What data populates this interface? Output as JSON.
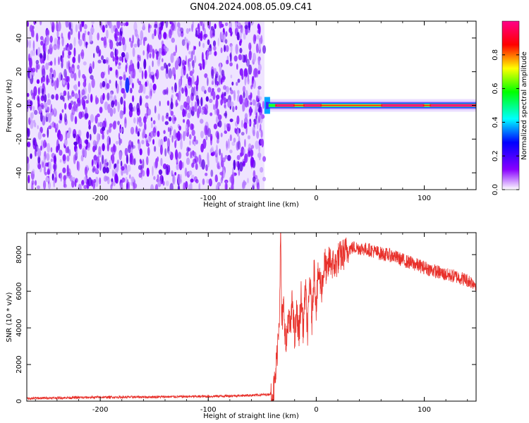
{
  "title": "GN04.2024.008.05.09.C41",
  "chart_data": [
    {
      "type": "heatmap",
      "xlabel": "Height of straight line (km)",
      "ylabel": "Frequency (Hz)",
      "xlim": [
        -268,
        148
      ],
      "ylim": [
        -50,
        50
      ],
      "xticks": [
        -200,
        -100,
        0,
        100
      ],
      "yticks": [
        -40,
        -20,
        0,
        20,
        40
      ],
      "noise_region_x": [
        -268,
        -48
      ],
      "signal_band": {
        "x": [
          -48,
          148
        ],
        "frequency_hz": 0,
        "initial_spread_hz": [
          -5,
          5
        ],
        "peak_segments_x": [
          [
            -38,
            -20
          ],
          [
            -12,
            5
          ],
          [
            60,
            100
          ],
          [
            105,
            148
          ]
        ]
      },
      "interference_spot": {
        "x": -175,
        "frequency_hz": 12
      },
      "colorbar": {
        "label": "Normalized spectral amplitude",
        "range": [
          0.0,
          1.0
        ],
        "ticks": [
          0.0,
          0.2,
          0.4,
          0.6,
          0.8
        ],
        "tick_labels": [
          "0.0",
          "0.2",
          "0.4",
          "0.6",
          "0.8"
        ],
        "colormap": [
          "#ffffff",
          "#8800ff",
          "#0000ff",
          "#00ffff",
          "#00ff00",
          "#ffff00",
          "#ff0000",
          "#ff0088"
        ]
      }
    },
    {
      "type": "line",
      "xlabel": "Height of straight line (km)",
      "ylabel": "SNR (10 * v/v)",
      "xlim": [
        -268,
        148
      ],
      "ylim": [
        0,
        9200
      ],
      "xticks": [
        -200,
        -100,
        0,
        100
      ],
      "yticks": [
        0,
        2000,
        4000,
        6000,
        8000
      ],
      "color": "#e8302a",
      "series": [
        {
          "x": [
            -268,
            -240,
            -200,
            -150,
            -100,
            -60,
            -45,
            -40,
            -38,
            -36,
            -34,
            -33,
            -32,
            -30,
            -28,
            -26,
            -24,
            -22,
            -20,
            -18,
            -16,
            -14,
            -12,
            -10,
            -8,
            -6,
            -4,
            -2,
            0,
            2,
            5,
            8,
            10,
            12,
            15,
            18,
            20,
            25,
            30,
            35,
            40,
            50,
            60,
            70,
            80,
            90,
            100,
            110,
            120,
            130,
            140,
            148
          ],
          "y": [
            150,
            180,
            210,
            230,
            260,
            320,
            360,
            430,
            1100,
            2900,
            5000,
            9200,
            4300,
            5200,
            2800,
            4600,
            3800,
            5600,
            3300,
            4900,
            3500,
            5800,
            3900,
            6200,
            3700,
            6800,
            4400,
            7300,
            5200,
            7000,
            6200,
            7600,
            6900,
            7700,
            7500,
            7400,
            7800,
            8000,
            8300,
            8400,
            8350,
            8250,
            8050,
            7950,
            7700,
            7500,
            7300,
            7100,
            6900,
            6800,
            6600,
            6400
          ]
        }
      ]
    }
  ]
}
